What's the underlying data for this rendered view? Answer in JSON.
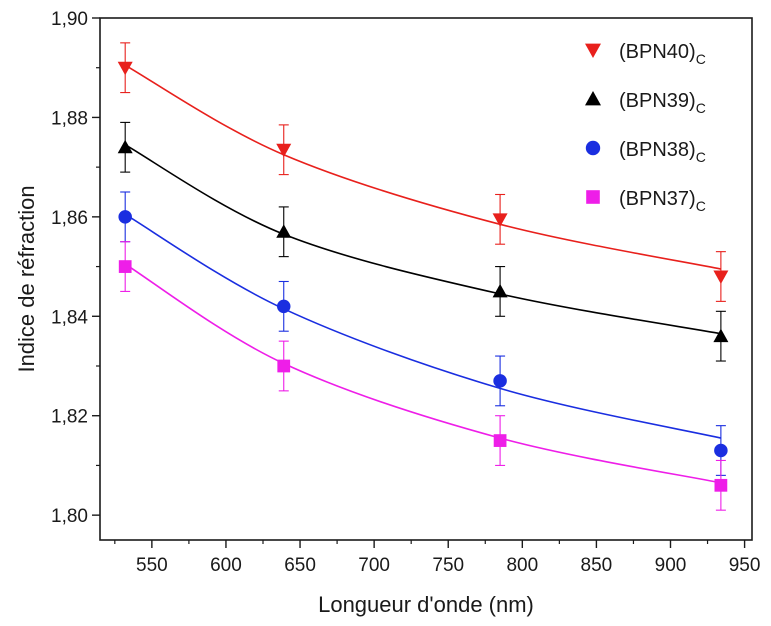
{
  "chart_data": {
    "type": "scatter",
    "title": "",
    "xlabel": "Longueur d'onde (nm)",
    "ylabel": "Indice de réfraction",
    "xlim": [
      515,
      955
    ],
    "ylim": [
      1.795,
      1.9
    ],
    "x_ticks": [
      550,
      600,
      650,
      700,
      750,
      800,
      850,
      900,
      950
    ],
    "x_tick_labels": [
      "550",
      "600",
      "650",
      "700",
      "750",
      "800",
      "850",
      "900",
      "950"
    ],
    "y_ticks": [
      1.8,
      1.82,
      1.84,
      1.86,
      1.88,
      1.9
    ],
    "y_tick_labels": [
      "1,80",
      "1,82",
      "1,84",
      "1,86",
      "1,88",
      "1,90"
    ],
    "grid": false,
    "legend_position": "top-right",
    "series": [
      {
        "name": "(BPN40)",
        "subscript": "C",
        "marker": "triangle-down",
        "color": "#e8201c",
        "x": [
          532,
          639,
          785,
          934
        ],
        "y": [
          1.89,
          1.8735,
          1.8595,
          1.848
        ],
        "error": [
          0.005,
          0.005,
          0.005,
          0.005
        ],
        "fit_y": [
          1.8905,
          1.8725,
          1.8585,
          1.8495
        ]
      },
      {
        "name": "(BPN39)",
        "subscript": "C",
        "marker": "triangle-up",
        "color": "#000000",
        "x": [
          532,
          639,
          785,
          934
        ],
        "y": [
          1.874,
          1.857,
          1.845,
          1.836
        ],
        "error": [
          0.005,
          0.005,
          0.005,
          0.005
        ],
        "fit_y": [
          1.8745,
          1.8565,
          1.8445,
          1.8365
        ]
      },
      {
        "name": "(BPN38)",
        "subscript": "C",
        "marker": "circle",
        "color": "#1a2ee0",
        "x": [
          532,
          639,
          785,
          934
        ],
        "y": [
          1.86,
          1.842,
          1.827,
          1.813
        ],
        "error": [
          0.005,
          0.005,
          0.005,
          0.005
        ],
        "fit_y": [
          1.8605,
          1.8415,
          1.8255,
          1.8155
        ]
      },
      {
        "name": "(BPN37)",
        "subscript": "C",
        "marker": "square",
        "color": "#ee1ee8",
        "x": [
          532,
          639,
          785,
          934
        ],
        "y": [
          1.85,
          1.83,
          1.815,
          1.806
        ],
        "error": [
          0.005,
          0.005,
          0.005,
          0.005
        ],
        "fit_y": [
          1.8505,
          1.8305,
          1.8155,
          1.8065
        ]
      }
    ]
  }
}
